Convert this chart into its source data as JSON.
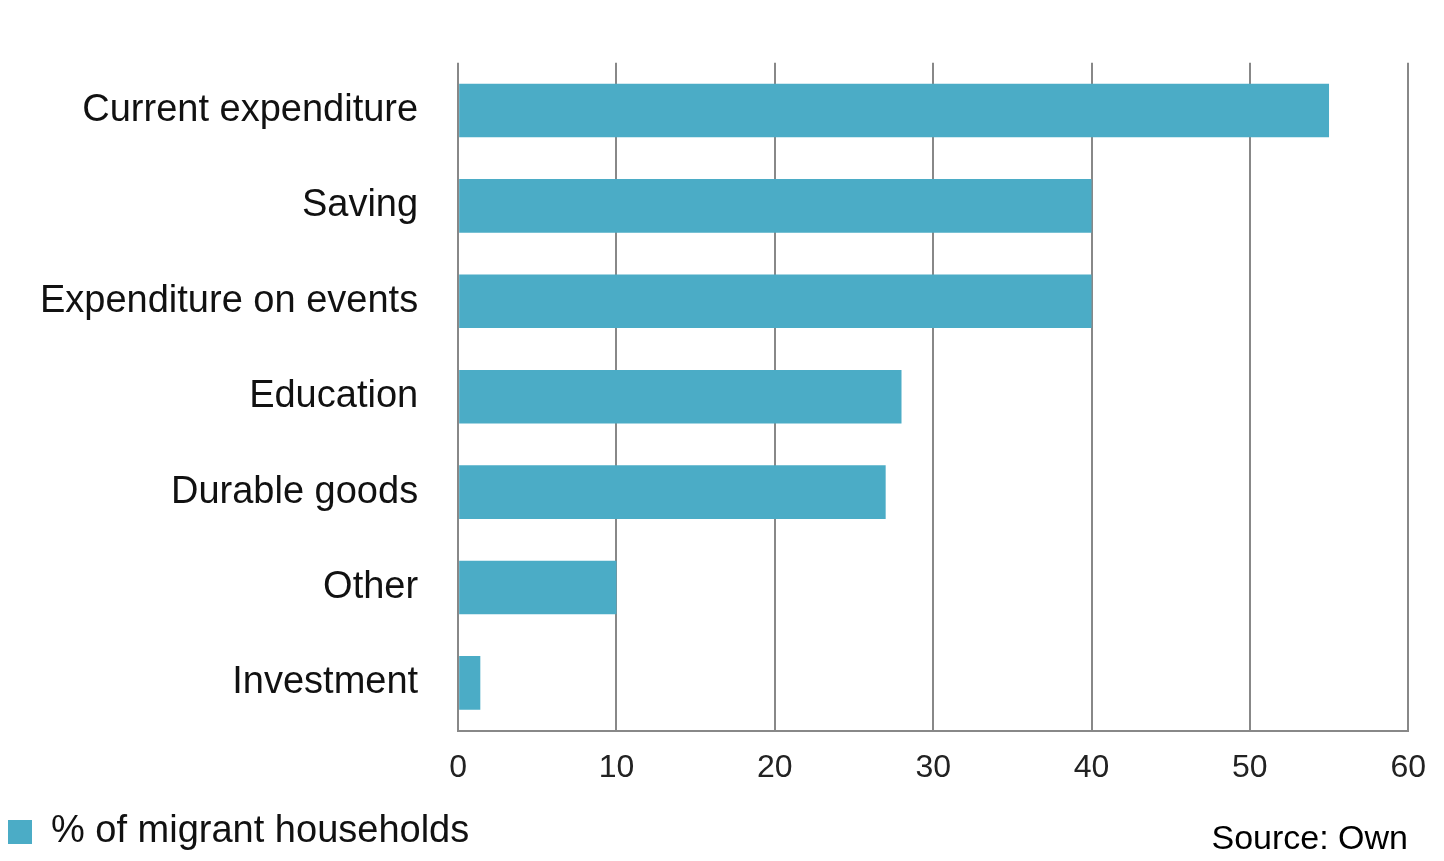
{
  "chart_data": {
    "type": "bar",
    "orientation": "horizontal",
    "categories": [
      "Current expenditure",
      "Saving",
      "Expenditure on events",
      "Education",
      "Durable goods",
      "Other",
      "Investment"
    ],
    "series": [
      {
        "name": "% of migrant households",
        "color": "#4bacc6",
        "values": [
          55,
          40,
          40,
          28,
          27,
          10,
          1.4
        ]
      }
    ],
    "xlim": [
      0,
      60
    ],
    "xticks": [
      0,
      10,
      20,
      30,
      40,
      50,
      60
    ],
    "grid": "x",
    "legend": "bottom",
    "annotations": [
      "Source: Own"
    ]
  }
}
